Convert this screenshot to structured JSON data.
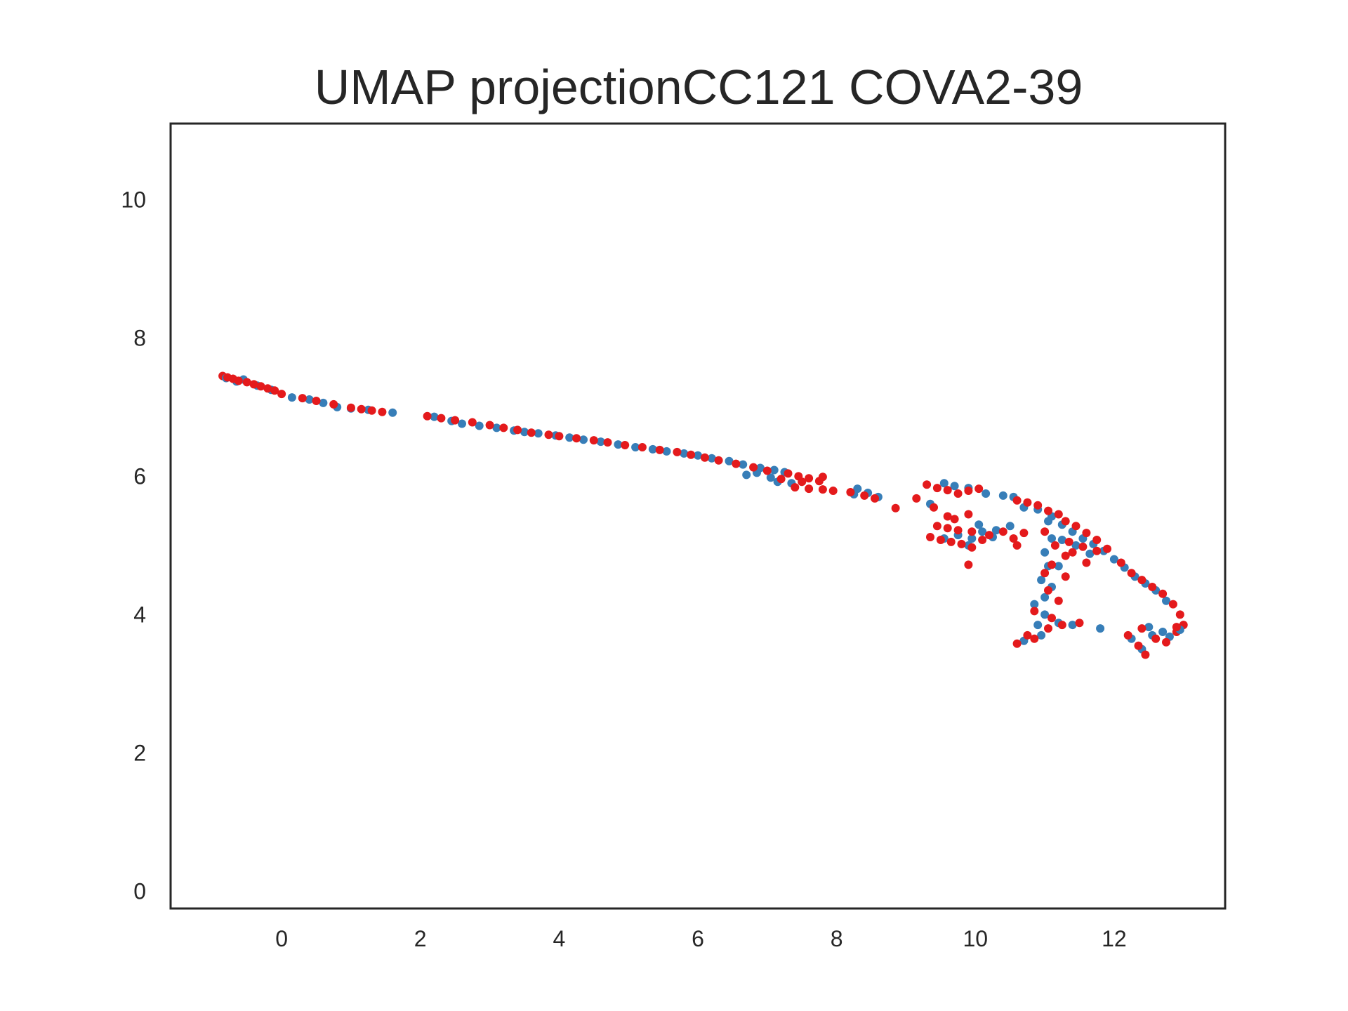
{
  "chart_data": {
    "type": "scatter",
    "title": "UMAP projectionCC121 COVA2-39",
    "xlabel": "",
    "ylabel": "",
    "xlim": [
      -1.6,
      13.6
    ],
    "ylim": [
      -0.25,
      11.1
    ],
    "x_ticks": [
      "0",
      "2",
      "4",
      "6",
      "8",
      "10",
      "12"
    ],
    "y_ticks": [
      "0",
      "2",
      "4",
      "6",
      "8",
      "10"
    ],
    "grid": false,
    "legend": "none",
    "colors": {
      "red": "#e41a1c",
      "blue": "#377eb8",
      "axes": "#262626"
    },
    "series": [
      {
        "color": "#e41a1c",
        "points": [
          [
            -0.85,
            7.45
          ],
          [
            -0.78,
            7.43
          ],
          [
            -0.7,
            7.41
          ],
          [
            -0.62,
            7.38
          ],
          [
            -0.5,
            7.36
          ],
          [
            -0.4,
            7.33
          ],
          [
            -0.3,
            7.3
          ],
          [
            -0.2,
            7.27
          ],
          [
            -0.1,
            7.24
          ],
          [
            0.0,
            7.19
          ],
          [
            0.3,
            7.13
          ],
          [
            0.5,
            7.09
          ],
          [
            0.75,
            7.04
          ],
          [
            1.0,
            6.99
          ],
          [
            1.15,
            6.97
          ],
          [
            1.3,
            6.95
          ],
          [
            1.45,
            6.93
          ],
          [
            2.1,
            6.87
          ],
          [
            2.3,
            6.84
          ],
          [
            2.5,
            6.81
          ],
          [
            2.75,
            6.78
          ],
          [
            3.0,
            6.74
          ],
          [
            3.2,
            6.7
          ],
          [
            3.4,
            6.67
          ],
          [
            3.6,
            6.63
          ],
          [
            3.85,
            6.6
          ],
          [
            4.0,
            6.58
          ],
          [
            4.25,
            6.55
          ],
          [
            4.5,
            6.52
          ],
          [
            4.7,
            6.49
          ],
          [
            4.95,
            6.45
          ],
          [
            5.2,
            6.42
          ],
          [
            5.45,
            6.38
          ],
          [
            5.7,
            6.35
          ],
          [
            5.9,
            6.31
          ],
          [
            6.1,
            6.27
          ],
          [
            6.3,
            6.23
          ],
          [
            6.55,
            6.18
          ],
          [
            6.8,
            6.13
          ],
          [
            7.0,
            6.08
          ],
          [
            7.3,
            6.04
          ],
          [
            7.45,
            6.0
          ],
          [
            7.6,
            5.97
          ],
          [
            7.75,
            5.93
          ],
          [
            7.8,
            5.99
          ],
          [
            7.5,
            5.92
          ],
          [
            7.2,
            5.96
          ],
          [
            7.4,
            5.84
          ],
          [
            7.6,
            5.82
          ],
          [
            7.8,
            5.81
          ],
          [
            7.95,
            5.79
          ],
          [
            8.2,
            5.77
          ],
          [
            8.4,
            5.72
          ],
          [
            8.55,
            5.68
          ],
          [
            8.85,
            5.54
          ],
          [
            9.15,
            5.68
          ],
          [
            9.3,
            5.88
          ],
          [
            9.45,
            5.83
          ],
          [
            9.6,
            5.8
          ],
          [
            9.75,
            5.75
          ],
          [
            9.9,
            5.79
          ],
          [
            10.05,
            5.82
          ],
          [
            9.4,
            5.55
          ],
          [
            9.6,
            5.42
          ],
          [
            9.7,
            5.38
          ],
          [
            9.9,
            5.45
          ],
          [
            9.45,
            5.28
          ],
          [
            9.6,
            5.25
          ],
          [
            9.75,
            5.22
          ],
          [
            9.95,
            5.2
          ],
          [
            9.35,
            5.12
          ],
          [
            9.5,
            5.08
          ],
          [
            9.65,
            5.05
          ],
          [
            9.8,
            5.02
          ],
          [
            9.95,
            4.97
          ],
          [
            10.1,
            5.08
          ],
          [
            9.9,
            4.72
          ],
          [
            10.2,
            5.15
          ],
          [
            10.4,
            5.2
          ],
          [
            10.55,
            5.1
          ],
          [
            10.7,
            5.18
          ],
          [
            10.6,
            5.0
          ],
          [
            10.6,
            5.65
          ],
          [
            10.75,
            5.62
          ],
          [
            10.9,
            5.58
          ],
          [
            11.05,
            5.5
          ],
          [
            11.2,
            5.45
          ],
          [
            11.3,
            5.35
          ],
          [
            11.45,
            5.28
          ],
          [
            11.6,
            5.18
          ],
          [
            11.75,
            5.08
          ],
          [
            11.9,
            4.95
          ],
          [
            12.1,
            4.75
          ],
          [
            12.25,
            4.6
          ],
          [
            12.4,
            4.5
          ],
          [
            12.55,
            4.4
          ],
          [
            12.7,
            4.3
          ],
          [
            12.85,
            4.15
          ],
          [
            12.95,
            4.0
          ],
          [
            13.0,
            3.85
          ],
          [
            12.9,
            3.75
          ],
          [
            11.0,
            5.2
          ],
          [
            11.15,
            5.0
          ],
          [
            11.3,
            4.85
          ],
          [
            11.0,
            4.6
          ],
          [
            11.05,
            4.35
          ],
          [
            11.2,
            4.2
          ],
          [
            10.85,
            4.05
          ],
          [
            11.1,
            3.95
          ],
          [
            11.05,
            3.8
          ],
          [
            10.75,
            3.7
          ],
          [
            10.85,
            3.65
          ],
          [
            10.6,
            3.58
          ],
          [
            11.25,
            3.85
          ],
          [
            11.5,
            3.88
          ],
          [
            11.35,
            5.05
          ],
          [
            11.55,
            4.98
          ],
          [
            11.75,
            4.92
          ],
          [
            11.1,
            4.72
          ],
          [
            11.4,
            4.9
          ],
          [
            11.6,
            4.75
          ],
          [
            11.3,
            4.55
          ],
          [
            12.2,
            3.7
          ],
          [
            12.35,
            3.55
          ],
          [
            12.45,
            3.42
          ],
          [
            12.6,
            3.65
          ],
          [
            12.75,
            3.6
          ],
          [
            12.4,
            3.8
          ],
          [
            12.9,
            3.82
          ]
        ]
      },
      {
        "color": "#377eb8",
        "points": [
          [
            -0.8,
            7.42
          ],
          [
            -0.65,
            7.37
          ],
          [
            -0.55,
            7.4
          ],
          [
            -0.35,
            7.31
          ],
          [
            -0.15,
            7.25
          ],
          [
            0.15,
            7.14
          ],
          [
            0.4,
            7.11
          ],
          [
            0.6,
            7.06
          ],
          [
            0.8,
            7.0
          ],
          [
            1.0,
            6.98
          ],
          [
            1.25,
            6.96
          ],
          [
            1.6,
            6.92
          ],
          [
            2.2,
            6.86
          ],
          [
            2.45,
            6.8
          ],
          [
            2.6,
            6.76
          ],
          [
            2.85,
            6.73
          ],
          [
            3.1,
            6.7
          ],
          [
            3.35,
            6.66
          ],
          [
            3.5,
            6.64
          ],
          [
            3.7,
            6.62
          ],
          [
            3.95,
            6.59
          ],
          [
            4.15,
            6.56
          ],
          [
            4.35,
            6.53
          ],
          [
            4.6,
            6.5
          ],
          [
            4.85,
            6.46
          ],
          [
            5.1,
            6.42
          ],
          [
            5.35,
            6.39
          ],
          [
            5.55,
            6.36
          ],
          [
            5.8,
            6.33
          ],
          [
            6.0,
            6.3
          ],
          [
            6.2,
            6.26
          ],
          [
            6.45,
            6.22
          ],
          [
            6.65,
            6.17
          ],
          [
            6.9,
            6.12
          ],
          [
            7.1,
            6.09
          ],
          [
            7.25,
            6.06
          ],
          [
            6.85,
            6.05
          ],
          [
            6.7,
            6.02
          ],
          [
            7.05,
            5.98
          ],
          [
            7.15,
            5.92
          ],
          [
            7.35,
            5.9
          ],
          [
            8.3,
            5.82
          ],
          [
            8.45,
            5.76
          ],
          [
            8.6,
            5.7
          ],
          [
            8.25,
            5.74
          ],
          [
            9.35,
            5.6
          ],
          [
            9.55,
            5.9
          ],
          [
            9.7,
            5.86
          ],
          [
            9.9,
            5.83
          ],
          [
            10.15,
            5.75
          ],
          [
            10.4,
            5.72
          ],
          [
            9.55,
            5.1
          ],
          [
            9.75,
            5.15
          ],
          [
            9.95,
            5.1
          ],
          [
            10.1,
            5.2
          ],
          [
            10.3,
            5.22
          ],
          [
            10.5,
            5.28
          ],
          [
            10.25,
            5.12
          ],
          [
            9.9,
            5.0
          ],
          [
            10.05,
            5.3
          ],
          [
            10.55,
            5.7
          ],
          [
            10.7,
            5.55
          ],
          [
            10.9,
            5.52
          ],
          [
            11.1,
            5.42
          ],
          [
            11.25,
            5.3
          ],
          [
            11.4,
            5.2
          ],
          [
            11.55,
            5.1
          ],
          [
            11.7,
            5.02
          ],
          [
            11.85,
            4.92
          ],
          [
            12.0,
            4.8
          ],
          [
            12.15,
            4.68
          ],
          [
            12.3,
            4.55
          ],
          [
            12.45,
            4.45
          ],
          [
            12.6,
            4.35
          ],
          [
            12.75,
            4.2
          ],
          [
            11.05,
            5.35
          ],
          [
            11.1,
            5.1
          ],
          [
            11.0,
            4.9
          ],
          [
            11.05,
            4.7
          ],
          [
            10.95,
            4.5
          ],
          [
            11.1,
            4.4
          ],
          [
            11.0,
            4.25
          ],
          [
            10.85,
            4.15
          ],
          [
            11.0,
            4.0
          ],
          [
            10.9,
            3.85
          ],
          [
            10.95,
            3.7
          ],
          [
            10.7,
            3.62
          ],
          [
            11.2,
            3.88
          ],
          [
            11.4,
            3.85
          ],
          [
            11.8,
            3.8
          ],
          [
            11.25,
            5.08
          ],
          [
            11.45,
            5.0
          ],
          [
            11.65,
            4.88
          ],
          [
            11.2,
            4.7
          ],
          [
            12.25,
            3.65
          ],
          [
            12.4,
            3.5
          ],
          [
            12.55,
            3.7
          ],
          [
            12.7,
            3.75
          ],
          [
            12.8,
            3.68
          ],
          [
            12.5,
            3.82
          ],
          [
            12.95,
            3.78
          ]
        ]
      }
    ]
  }
}
